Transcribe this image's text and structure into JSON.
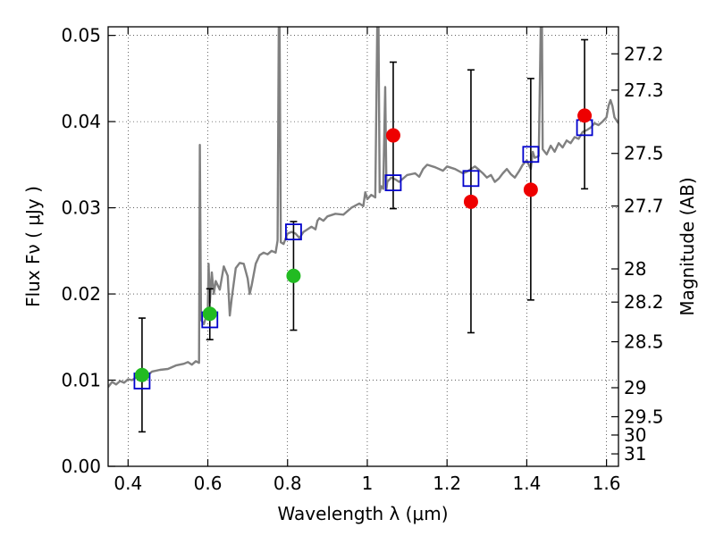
{
  "chart_data": {
    "type": "scatter",
    "xlabel": "Wavelength  λ (μm)",
    "ylabel": "Flux  Fν  ( μJy )",
    "ylabel_right": "Magnitude (AB)",
    "xlim": [
      0.35,
      1.63
    ],
    "ylim": [
      0.0,
      0.051
    ],
    "grid": true,
    "x_ticks": [
      {
        "value": 0.4,
        "label": "0.4"
      },
      {
        "value": 0.6,
        "label": "0.6"
      },
      {
        "value": 0.8,
        "label": "0.8"
      },
      {
        "value": 1.0,
        "label": "1"
      },
      {
        "value": 1.2,
        "label": "1.2"
      },
      {
        "value": 1.4,
        "label": "1.4"
      },
      {
        "value": 1.6,
        "label": "1.6"
      }
    ],
    "y_ticks": [
      {
        "value": 0.0,
        "label": "0.00"
      },
      {
        "value": 0.01,
        "label": "0.01"
      },
      {
        "value": 0.02,
        "label": "0.02"
      },
      {
        "value": 0.03,
        "label": "0.03"
      },
      {
        "value": 0.04,
        "label": "0.04"
      },
      {
        "value": 0.05,
        "label": "0.05"
      }
    ],
    "magnitude_ticks": [
      {
        "value": 27.2,
        "label": "27.2"
      },
      {
        "value": 27.3,
        "label": "27.3"
      },
      {
        "value": 27.5,
        "label": "27.5"
      },
      {
        "value": 27.7,
        "label": "27.7"
      },
      {
        "value": 28.0,
        "label": "28"
      },
      {
        "value": 28.2,
        "label": "28.2"
      },
      {
        "value": 28.5,
        "label": "28.5"
      },
      {
        "value": 29.0,
        "label": "29"
      },
      {
        "value": 29.5,
        "label": "29.5"
      },
      {
        "value": 30.0,
        "label": "30"
      },
      {
        "value": 31.0,
        "label": "31"
      }
    ],
    "model_spectrum": {
      "color": "#808080",
      "points": [
        [
          0.35,
          0.0092
        ],
        [
          0.36,
          0.0098
        ],
        [
          0.37,
          0.0095
        ],
        [
          0.38,
          0.0099
        ],
        [
          0.39,
          0.0097
        ],
        [
          0.4,
          0.0101
        ],
        [
          0.41,
          0.01
        ],
        [
          0.42,
          0.0103
        ],
        [
          0.43,
          0.0104
        ],
        [
          0.44,
          0.0105
        ],
        [
          0.45,
          0.0106
        ],
        [
          0.46,
          0.011
        ],
        [
          0.48,
          0.0112
        ],
        [
          0.5,
          0.0113
        ],
        [
          0.52,
          0.0117
        ],
        [
          0.54,
          0.0119
        ],
        [
          0.55,
          0.0121
        ],
        [
          0.56,
          0.0118
        ],
        [
          0.57,
          0.0122
        ],
        [
          0.578,
          0.012
        ],
        [
          0.58,
          0.0373
        ],
        [
          0.583,
          0.017
        ],
        [
          0.59,
          0.0165
        ],
        [
          0.6,
          0.018
        ],
        [
          0.602,
          0.0235
        ],
        [
          0.605,
          0.019
        ],
        [
          0.61,
          0.0225
        ],
        [
          0.615,
          0.02
        ],
        [
          0.62,
          0.0215
        ],
        [
          0.63,
          0.0205
        ],
        [
          0.64,
          0.0232
        ],
        [
          0.65,
          0.0221
        ],
        [
          0.655,
          0.0175
        ],
        [
          0.66,
          0.0195
        ],
        [
          0.67,
          0.023
        ],
        [
          0.68,
          0.0236
        ],
        [
          0.69,
          0.0235
        ],
        [
          0.7,
          0.0218
        ],
        [
          0.705,
          0.02
        ],
        [
          0.71,
          0.021
        ],
        [
          0.72,
          0.0235
        ],
        [
          0.73,
          0.0245
        ],
        [
          0.74,
          0.0248
        ],
        [
          0.75,
          0.0246
        ],
        [
          0.76,
          0.025
        ],
        [
          0.77,
          0.0248
        ],
        [
          0.775,
          0.0262
        ],
        [
          0.778,
          0.051
        ],
        [
          0.78,
          0.051
        ],
        [
          0.783,
          0.026
        ],
        [
          0.79,
          0.0258
        ],
        [
          0.8,
          0.027
        ],
        [
          0.81,
          0.0272
        ],
        [
          0.82,
          0.027
        ],
        [
          0.83,
          0.0265
        ],
        [
          0.84,
          0.0272
        ],
        [
          0.85,
          0.0275
        ],
        [
          0.86,
          0.0278
        ],
        [
          0.87,
          0.0275
        ],
        [
          0.875,
          0.0285
        ],
        [
          0.88,
          0.0288
        ],
        [
          0.89,
          0.0285
        ],
        [
          0.9,
          0.029
        ],
        [
          0.92,
          0.0293
        ],
        [
          0.94,
          0.0292
        ],
        [
          0.96,
          0.03
        ],
        [
          0.98,
          0.0305
        ],
        [
          0.99,
          0.0302
        ],
        [
          0.995,
          0.0318
        ],
        [
          1.0,
          0.031
        ],
        [
          1.01,
          0.0315
        ],
        [
          1.02,
          0.0312
        ],
        [
          1.025,
          0.051
        ],
        [
          1.028,
          0.051
        ],
        [
          1.031,
          0.0318
        ],
        [
          1.035,
          0.0325
        ],
        [
          1.04,
          0.0322
        ],
        [
          1.045,
          0.044
        ],
        [
          1.048,
          0.0322
        ],
        [
          1.05,
          0.033
        ],
        [
          1.06,
          0.0335
        ],
        [
          1.07,
          0.0333
        ],
        [
          1.08,
          0.033
        ],
        [
          1.1,
          0.0338
        ],
        [
          1.12,
          0.034
        ],
        [
          1.13,
          0.0336
        ],
        [
          1.14,
          0.0345
        ],
        [
          1.15,
          0.035
        ],
        [
          1.17,
          0.0347
        ],
        [
          1.19,
          0.0343
        ],
        [
          1.2,
          0.0348
        ],
        [
          1.22,
          0.0345
        ],
        [
          1.24,
          0.034
        ],
        [
          1.25,
          0.0342
        ],
        [
          1.26,
          0.0345
        ],
        [
          1.27,
          0.0348
        ],
        [
          1.28,
          0.0344
        ],
        [
          1.29,
          0.034
        ],
        [
          1.3,
          0.0335
        ],
        [
          1.31,
          0.0338
        ],
        [
          1.32,
          0.033
        ],
        [
          1.33,
          0.0334
        ],
        [
          1.34,
          0.034
        ],
        [
          1.35,
          0.0345
        ],
        [
          1.36,
          0.0339
        ],
        [
          1.37,
          0.0335
        ],
        [
          1.38,
          0.0342
        ],
        [
          1.39,
          0.035
        ],
        [
          1.4,
          0.0355
        ],
        [
          1.41,
          0.0345
        ],
        [
          1.415,
          0.0365
        ],
        [
          1.42,
          0.0358
        ],
        [
          1.43,
          0.036
        ],
        [
          1.435,
          0.051
        ],
        [
          1.438,
          0.051
        ],
        [
          1.44,
          0.0368
        ],
        [
          1.45,
          0.0362
        ],
        [
          1.46,
          0.0372
        ],
        [
          1.47,
          0.0365
        ],
        [
          1.48,
          0.0375
        ],
        [
          1.49,
          0.037
        ],
        [
          1.5,
          0.0378
        ],
        [
          1.51,
          0.0375
        ],
        [
          1.52,
          0.0382
        ],
        [
          1.53,
          0.038
        ],
        [
          1.54,
          0.0388
        ],
        [
          1.55,
          0.039
        ],
        [
          1.56,
          0.0393
        ],
        [
          1.57,
          0.0398
        ],
        [
          1.58,
          0.0396
        ],
        [
          1.59,
          0.04
        ],
        [
          1.6,
          0.0405
        ],
        [
          1.605,
          0.0418
        ],
        [
          1.61,
          0.0425
        ],
        [
          1.615,
          0.0418
        ],
        [
          1.62,
          0.0405
        ],
        [
          1.63,
          0.0398
        ]
      ]
    },
    "series": [
      {
        "marker": "open-square",
        "color": "#0000cc",
        "points": [
          {
            "x": 0.435,
            "y": 0.0099
          },
          {
            "x": 0.605,
            "y": 0.017
          },
          {
            "x": 0.815,
            "y": 0.0272
          },
          {
            "x": 1.065,
            "y": 0.0329
          },
          {
            "x": 1.26,
            "y": 0.0334
          },
          {
            "x": 1.41,
            "y": 0.0362
          },
          {
            "x": 1.545,
            "y": 0.0393
          }
        ]
      },
      {
        "marker": "filled-circle",
        "color": "#22bb22",
        "points": [
          {
            "x": 0.435,
            "y": 0.0106,
            "yerr_low": 0.004,
            "yerr_high": 0.0172
          },
          {
            "x": 0.605,
            "y": 0.0177,
            "yerr_low": 0.0147,
            "yerr_high": 0.0206
          },
          {
            "x": 0.815,
            "y": 0.0221,
            "yerr_low": 0.0158,
            "yerr_high": 0.0284
          }
        ]
      },
      {
        "marker": "filled-circle",
        "color": "#ee0000",
        "points": [
          {
            "x": 1.065,
            "y": 0.0384,
            "yerr_low": 0.0299,
            "yerr_high": 0.0469
          },
          {
            "x": 1.26,
            "y": 0.0307,
            "yerr_low": 0.0155,
            "yerr_high": 0.046
          },
          {
            "x": 1.41,
            "y": 0.0321,
            "yerr_low": 0.0193,
            "yerr_high": 0.045
          },
          {
            "x": 1.545,
            "y": 0.0407,
            "yerr_low": 0.0322,
            "yerr_high": 0.0495
          }
        ]
      }
    ]
  }
}
